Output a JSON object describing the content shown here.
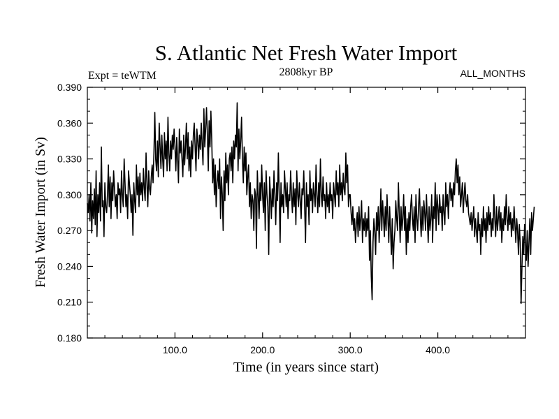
{
  "chart_data": {
    "type": "line",
    "title": "S. Atlantic Net Fresh Water Import",
    "subtitle_left": "Expt = teWTM",
    "subtitle_center": "2808kyr BP",
    "subtitle_right": "ALL_MONTHS",
    "xlabel": "Time (in years since start)",
    "ylabel": "Fresh Water Import (in Sv)",
    "xlim": [
      0,
      500
    ],
    "ylim": [
      0.18,
      0.39
    ],
    "xticks": [
      100,
      200,
      300,
      400
    ],
    "xtick_labels": [
      "100.0",
      "200.0",
      "300.0",
      "400.0"
    ],
    "yticks": [
      0.18,
      0.21,
      0.24,
      0.27,
      0.3,
      0.33,
      0.36,
      0.39
    ],
    "ytick_labels": [
      "0.180",
      "0.210",
      "0.240",
      "0.270",
      "0.300",
      "0.330",
      "0.360",
      "0.390"
    ],
    "grid": false,
    "series": [
      {
        "name": "Net Fresh Water Import",
        "x_start": 0,
        "x_step": 1,
        "values": [
          0.293,
          0.285,
          0.3,
          0.278,
          0.31,
          0.268,
          0.295,
          0.28,
          0.305,
          0.275,
          0.32,
          0.265,
          0.3,
          0.285,
          0.31,
          0.278,
          0.34,
          0.29,
          0.295,
          0.265,
          0.31,
          0.29,
          0.285,
          0.3,
          0.325,
          0.29,
          0.315,
          0.28,
          0.31,
          0.295,
          0.32,
          0.305,
          0.29,
          0.3,
          0.28,
          0.31,
          0.3,
          0.305,
          0.285,
          0.32,
          0.3,
          0.29,
          0.33,
          0.31,
          0.29,
          0.3,
          0.28,
          0.32,
          0.31,
          0.3,
          0.285,
          0.3,
          0.266,
          0.31,
          0.295,
          0.285,
          0.325,
          0.3,
          0.315,
          0.29,
          0.318,
          0.3,
          0.31,
          0.295,
          0.322,
          0.305,
          0.295,
          0.335,
          0.31,
          0.29,
          0.32,
          0.305,
          0.3,
          0.315,
          0.325,
          0.31,
          0.335,
          0.369,
          0.33,
          0.32,
          0.345,
          0.315,
          0.36,
          0.34,
          0.322,
          0.35,
          0.33,
          0.315,
          0.352,
          0.33,
          0.345,
          0.32,
          0.365,
          0.335,
          0.32,
          0.345,
          0.33,
          0.35,
          0.338,
          0.355,
          0.34,
          0.32,
          0.348,
          0.33,
          0.31,
          0.355,
          0.335,
          0.345,
          0.33,
          0.315,
          0.35,
          0.325,
          0.34,
          0.36,
          0.33,
          0.352,
          0.32,
          0.34,
          0.315,
          0.345,
          0.33,
          0.35,
          0.36,
          0.34,
          0.32,
          0.355,
          0.345,
          0.33,
          0.35,
          0.338,
          0.36,
          0.342,
          0.325,
          0.372,
          0.34,
          0.355,
          0.373,
          0.35,
          0.32,
          0.362,
          0.34,
          0.37,
          0.345,
          0.31,
          0.33,
          0.3,
          0.325,
          0.29,
          0.31,
          0.32,
          0.305,
          0.33,
          0.28,
          0.315,
          0.3,
          0.27,
          0.32,
          0.295,
          0.335,
          0.31,
          0.325,
          0.3,
          0.33,
          0.335,
          0.32,
          0.34,
          0.31,
          0.345,
          0.33,
          0.35,
          0.34,
          0.377,
          0.32,
          0.355,
          0.33,
          0.345,
          0.365,
          0.33,
          0.31,
          0.34,
          0.32,
          0.335,
          0.3,
          0.315,
          0.325,
          0.29,
          0.31,
          0.28,
          0.3,
          0.295,
          0.27,
          0.305,
          0.3,
          0.255,
          0.32,
          0.3,
          0.28,
          0.31,
          0.295,
          0.325,
          0.3,
          0.285,
          0.31,
          0.27,
          0.32,
          0.3,
          0.29,
          0.25,
          0.315,
          0.3,
          0.28,
          0.305,
          0.29,
          0.32,
          0.3,
          0.275,
          0.31,
          0.295,
          0.335,
          0.3,
          0.26,
          0.31,
          0.29,
          0.3,
          0.285,
          0.32,
          0.305,
          0.29,
          0.31,
          0.28,
          0.3,
          0.295,
          0.32,
          0.3,
          0.285,
          0.31,
          0.29,
          0.305,
          0.275,
          0.32,
          0.3,
          0.29,
          0.31,
          0.295,
          0.28,
          0.305,
          0.3,
          0.32,
          0.29,
          0.26,
          0.31,
          0.29,
          0.3,
          0.275,
          0.32,
          0.295,
          0.305,
          0.285,
          0.31,
          0.3,
          0.29,
          0.325,
          0.3,
          0.285,
          0.31,
          0.29,
          0.33,
          0.3,
          0.29,
          0.315,
          0.295,
          0.3,
          0.28,
          0.31,
          0.29,
          0.3,
          0.285,
          0.31,
          0.295,
          0.3,
          0.28,
          0.31,
          0.3,
          0.29,
          0.32,
          0.3,
          0.31,
          0.29,
          0.325,
          0.3,
          0.31,
          0.295,
          0.318,
          0.305,
          0.3,
          0.335,
          0.31,
          0.325,
          0.29,
          0.3,
          0.3,
          0.285,
          0.275,
          0.29,
          0.27,
          0.28,
          0.26,
          0.275,
          0.285,
          0.265,
          0.29,
          0.27,
          0.28,
          0.295,
          0.26,
          0.28,
          0.27,
          0.285,
          0.265,
          0.28,
          0.27,
          0.29,
          0.245,
          0.27,
          0.232,
          0.212,
          0.26,
          0.28,
          0.27,
          0.25,
          0.285,
          0.27,
          0.29,
          0.26,
          0.28,
          0.305,
          0.27,
          0.295,
          0.28,
          0.265,
          0.29,
          0.27,
          0.3,
          0.28,
          0.26,
          0.29,
          0.27,
          0.25,
          0.28,
          0.238,
          0.26,
          0.27,
          0.295,
          0.28,
          0.27,
          0.31,
          0.285,
          0.26,
          0.29,
          0.27,
          0.28,
          0.3,
          0.27,
          0.29,
          0.25,
          0.28,
          0.26,
          0.285,
          0.27,
          0.29,
          0.3,
          0.28,
          0.27,
          0.29,
          0.26,
          0.3,
          0.28,
          0.27,
          0.29,
          0.305,
          0.28,
          0.265,
          0.29,
          0.27,
          0.295,
          0.285,
          0.27,
          0.3,
          0.28,
          0.26,
          0.29,
          0.27,
          0.28,
          0.3,
          0.26,
          0.29,
          0.28,
          0.31,
          0.27,
          0.3,
          0.29,
          0.275,
          0.3,
          0.285,
          0.29,
          0.27,
          0.3,
          0.285,
          0.275,
          0.31,
          0.29,
          0.3,
          0.28,
          0.3,
          0.31,
          0.295,
          0.305,
          0.29,
          0.31,
          0.3,
          0.32,
          0.33,
          0.31,
          0.325,
          0.3,
          0.315,
          0.29,
          0.3,
          0.31,
          0.285,
          0.3,
          0.31,
          0.295,
          0.29,
          0.3,
          0.285,
          0.28,
          0.275,
          0.285,
          0.27,
          0.28,
          0.29,
          0.265,
          0.28,
          0.27,
          0.26,
          0.285,
          0.27,
          0.275,
          0.25,
          0.28,
          0.265,
          0.29,
          0.27,
          0.28,
          0.26,
          0.285,
          0.27,
          0.29,
          0.275,
          0.285,
          0.265,
          0.28,
          0.27,
          0.3,
          0.28,
          0.265,
          0.29,
          0.27,
          0.28,
          0.29,
          0.27,
          0.285,
          0.26,
          0.28,
          0.27,
          0.29,
          0.275,
          0.3,
          0.28,
          0.27,
          0.29,
          0.275,
          0.285,
          0.265,
          0.28,
          0.27,
          0.29,
          0.275,
          0.26,
          0.28,
          0.27,
          0.25,
          0.275,
          0.26,
          0.209,
          0.24,
          0.265,
          0.25,
          0.275,
          0.26,
          0.245,
          0.27,
          0.24,
          0.26,
          0.28,
          0.25,
          0.285,
          0.27,
          0.28,
          0.29
        ]
      }
    ]
  }
}
